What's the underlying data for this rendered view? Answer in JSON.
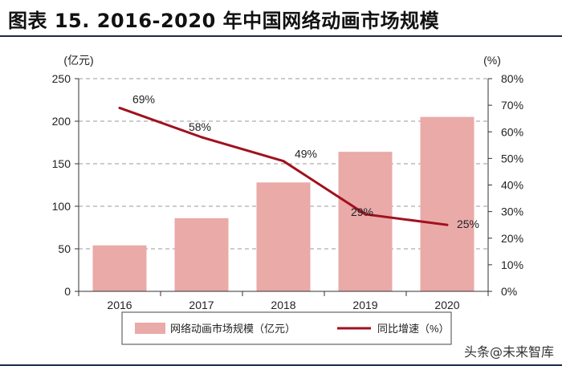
{
  "header": {
    "title": "图表 15. 2016-2020 年中国网络动画市场规模"
  },
  "footer": {
    "credit_prefix": "头条",
    "credit_name": "@未来智库"
  },
  "chart_data": {
    "type": "bar",
    "categories": [
      "2016",
      "2017",
      "2018",
      "2019",
      "2020"
    ],
    "series": [
      {
        "name": "网络动画市场规模（亿元）",
        "type": "bar",
        "axis": "left",
        "values": [
          54,
          86,
          128,
          164,
          205
        ],
        "color": "#e9aaa8"
      },
      {
        "name": "同比增速（%）",
        "type": "line",
        "axis": "right",
        "values": [
          69,
          58,
          49,
          29,
          25
        ],
        "labels": [
          "69%",
          "58%",
          "49%",
          "29%",
          "25%"
        ],
        "color": "#a0111e"
      }
    ],
    "left_axis": {
      "unit_label": "(亿元)",
      "ylim": [
        0,
        250
      ],
      "ticks": [
        "0",
        "50",
        "100",
        "150",
        "200",
        "250"
      ]
    },
    "right_axis": {
      "unit_label": "(%)",
      "ylim": [
        0,
        80
      ],
      "ticks": [
        "0%",
        "10%",
        "20%",
        "30%",
        "40%",
        "50%",
        "60%",
        "70%",
        "80%"
      ]
    },
    "grid": "dashed horizontal",
    "legend_position": "bottom"
  }
}
